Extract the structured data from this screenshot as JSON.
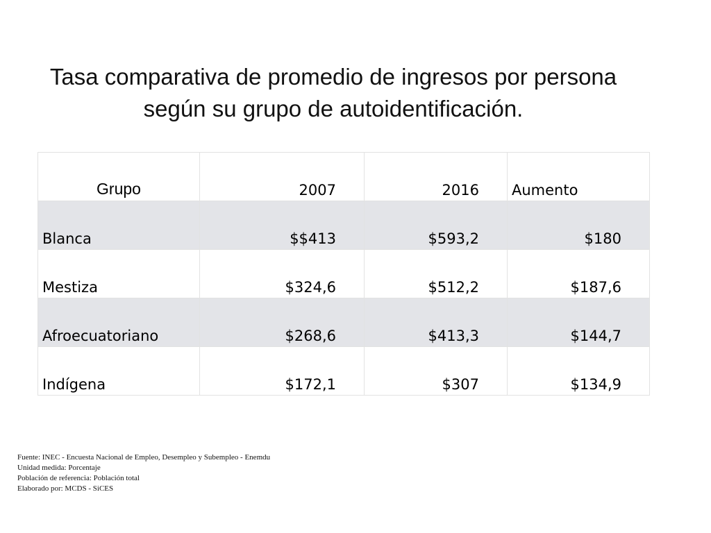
{
  "title": {
    "line1": "Tasa comparativa de promedio de ingresos por persona",
    "line2": "según su grupo de autoidentificación."
  },
  "table": {
    "headers": [
      "Grupo",
      "2007",
      "2016",
      "Aumento"
    ],
    "rows": [
      {
        "grupo": "Blanca",
        "y2007": "$$413",
        "y2016": "$593,2",
        "aumento": "$180"
      },
      {
        "grupo": "Mestiza",
        "y2007": "$324,6",
        "y2016": "$512,2",
        "aumento": "$187,6"
      },
      {
        "grupo": "Afroecuatoriano",
        "y2007": "$268,6",
        "y2016": "$413,3",
        "aumento": "$144,7"
      },
      {
        "grupo": "Indígena",
        "y2007": "$172,1",
        "y2016": "$307",
        "aumento": "$134,9"
      }
    ]
  },
  "footer": {
    "source": "Fuente: INEC - Encuesta Nacional de Empleo, Desempleo y Subempleo - Enemdu",
    "unit": "Unidad medida: Porcentaje",
    "population": "Población de referencia: Población total",
    "author": "Elaborado por: MCDS - SiCES"
  },
  "colors": {
    "row_shade": "#e3e4e8",
    "border": "#e2e2e2"
  }
}
